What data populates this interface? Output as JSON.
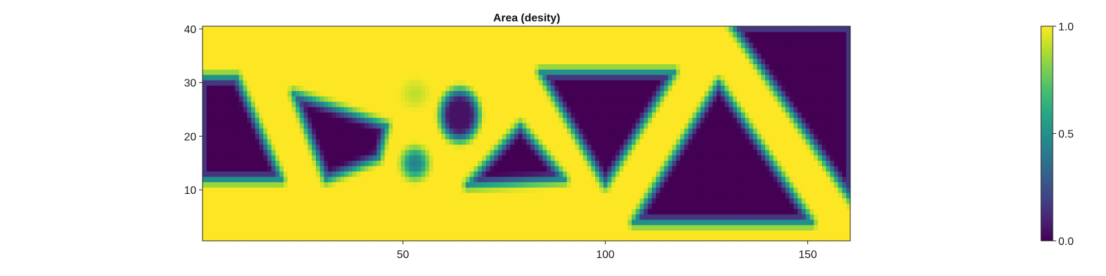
{
  "chart_data": {
    "type": "heatmap",
    "title": "Area (desity)",
    "xlabel": "",
    "ylabel": "",
    "xlim": [
      0.5,
      160.5
    ],
    "ylim": [
      0.5,
      40.5
    ],
    "x_ticks": [
      50,
      100,
      150
    ],
    "y_ticks": [
      10,
      20,
      30,
      40
    ],
    "x_tick_labels": [
      "50",
      "100",
      "150"
    ],
    "y_tick_labels": [
      "10",
      "20",
      "30",
      "40"
    ],
    "grid": false,
    "colormap": "viridis",
    "colorbar": {
      "range": [
        0.0,
        1.0
      ],
      "ticks": [
        0.0,
        0.5,
        1.0
      ],
      "tick_labels": [
        "0.0",
        "0.5",
        "1.0"
      ]
    },
    "background_value": 1.0,
    "voids": [
      {
        "shape": "polygon",
        "vertices": [
          [
            0,
            31
          ],
          [
            9,
            31
          ],
          [
            20,
            12
          ],
          [
            0,
            12
          ]
        ],
        "value": 0.0
      },
      {
        "shape": "polygon",
        "vertices": [
          [
            23,
            28
          ],
          [
            46,
            22
          ],
          [
            44,
            16
          ],
          [
            31,
            12
          ]
        ],
        "value": 0.0
      },
      {
        "shape": "polygon",
        "vertices": [
          [
            84,
            32
          ],
          [
            117,
            32
          ],
          [
            100,
            11
          ]
        ],
        "value": 0.0
      },
      {
        "shape": "polygon",
        "vertices": [
          [
            128,
            30
          ],
          [
            151,
            4
          ],
          [
            107,
            4
          ]
        ],
        "value": 0.0
      },
      {
        "shape": "polygon",
        "vertices": [
          [
            131,
            41
          ],
          [
            161,
            41
          ],
          [
            161,
            8
          ]
        ],
        "value": 0.0
      },
      {
        "shape": "polygon",
        "vertices": [
          [
            79,
            22
          ],
          [
            90,
            12
          ],
          [
            66,
            11
          ]
        ],
        "value": 0.0
      },
      {
        "shape": "ellipse",
        "center": [
          64,
          24
        ],
        "radii": [
          4.5,
          4.5
        ],
        "value": 0.05
      },
      {
        "shape": "ellipse",
        "center": [
          53,
          15
        ],
        "radii": [
          2.8,
          2.5
        ],
        "value": 0.45
      },
      {
        "shape": "ellipse",
        "center": [
          53,
          28
        ],
        "radii": [
          2.5,
          2.0
        ],
        "value": 0.9
      }
    ],
    "transition_width": 4
  }
}
